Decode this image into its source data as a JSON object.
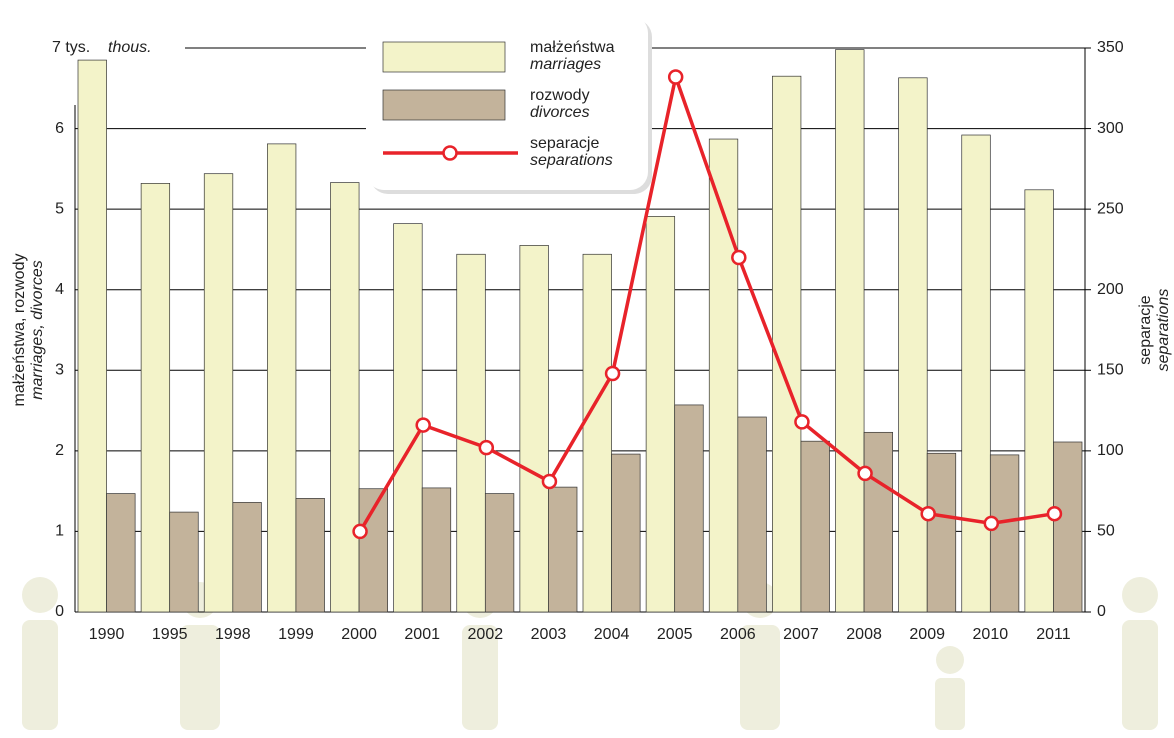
{
  "chart_data": {
    "type": "bar",
    "categories": [
      "1990",
      "1995",
      "1998",
      "1999",
      "2000",
      "2001",
      "2002",
      "2003",
      "2004",
      "2005",
      "2006",
      "2007",
      "2008",
      "2009",
      "2010",
      "2011"
    ],
    "series": [
      {
        "name": "małżeństwa",
        "name_en": "marriages",
        "color": "#f3f3c9",
        "values": [
          6.85,
          5.32,
          5.44,
          5.81,
          5.33,
          4.82,
          4.44,
          4.55,
          4.44,
          4.91,
          5.87,
          6.65,
          6.98,
          6.63,
          5.92,
          5.24
        ]
      },
      {
        "name": "rozwody",
        "name_en": "divorces",
        "color": "#c3b39b",
        "values": [
          1.47,
          1.24,
          1.36,
          1.41,
          1.53,
          1.54,
          1.47,
          1.55,
          1.96,
          2.57,
          2.42,
          2.12,
          2.23,
          1.97,
          1.95,
          2.11
        ]
      },
      {
        "name": "separacje",
        "name_en": "separations",
        "color": "#e8232a",
        "type": "line",
        "axis": "y2",
        "values": [
          null,
          null,
          null,
          null,
          50,
          116,
          102,
          81,
          148,
          332,
          220,
          118,
          86,
          61,
          55,
          61
        ]
      }
    ],
    "ylabel": "małżeństwa, rozwody",
    "ylabel_en": "marriages, divorces",
    "y2label": "separacje",
    "y2label_en": "separations",
    "yunit_en": "thous.",
    "ylim": [
      0,
      7
    ],
    "yticks": [
      0,
      1,
      2,
      3,
      4,
      5,
      6,
      {
        "value": 7,
        "label": "7 tys."
      }
    ],
    "y2lim": [
      0,
      350
    ],
    "y2ticks": [
      0,
      50,
      100,
      150,
      200,
      250,
      300,
      350
    ],
    "grid": true,
    "legend": "top-center"
  }
}
